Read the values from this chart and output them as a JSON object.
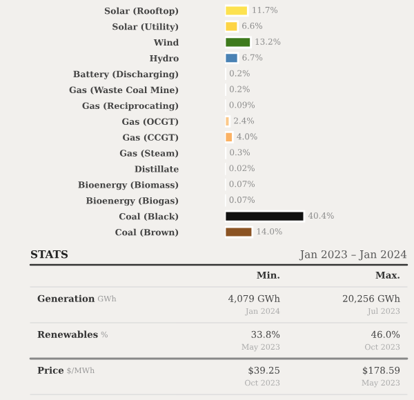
{
  "chart_data": {
    "type": "bar",
    "orientation": "horizontal",
    "data_labels": true,
    "categories": [
      "Solar (Rooftop)",
      "Solar (Utility)",
      "Wind",
      "Hydro",
      "Battery (Discharging)",
      "Gas (Waste Coal Mine)",
      "Gas (Reciprocating)",
      "Gas (OCGT)",
      "Gas (CCGT)",
      "Gas (Steam)",
      "Distillate",
      "Bioenergy (Biomass)",
      "Bioenergy (Biogas)",
      "Coal (Black)",
      "Coal (Brown)"
    ],
    "values": [
      11.7,
      6.6,
      13.2,
      6.7,
      0.2,
      0.2,
      0.09,
      2.4,
      4.0,
      0.3,
      0.02,
      0.07,
      0.07,
      40.4,
      14.0
    ],
    "value_labels": [
      "11.7%",
      "6.6%",
      "13.2%",
      "6.7%",
      "0.2%",
      "0.2%",
      "0.09%",
      "2.4%",
      "4.0%",
      "0.3%",
      "0.02%",
      "0.07%",
      "0.07%",
      "40.4%",
      "14.0%"
    ],
    "colors": [
      "#fde24f",
      "#fdd445",
      "#3e7a1c",
      "#4a82b4",
      "#a8c4e2",
      "#a9a9a9",
      "#f6c79a",
      "#fcc98a",
      "#fbb264",
      "#f3c69c",
      "#e3b58e",
      "#a48a6c",
      "#a48a6c",
      "#111111",
      "#8b5424"
    ],
    "annotations": [
      "STATS",
      "Jan 2023 – Jan 2024",
      "Min.",
      "Max.",
      "Generation",
      "GWh",
      "4,079 GWh",
      "Jan 2024",
      "20,256 GWh",
      "Jul 2023",
      "Renewables",
      "%",
      "33.8%",
      "May 2023",
      "46.0%",
      "Oct 2023",
      "Price",
      "$/MWh",
      "$39.25",
      "Oct 2023",
      "$178.59",
      "May 2023"
    ]
  }
}
